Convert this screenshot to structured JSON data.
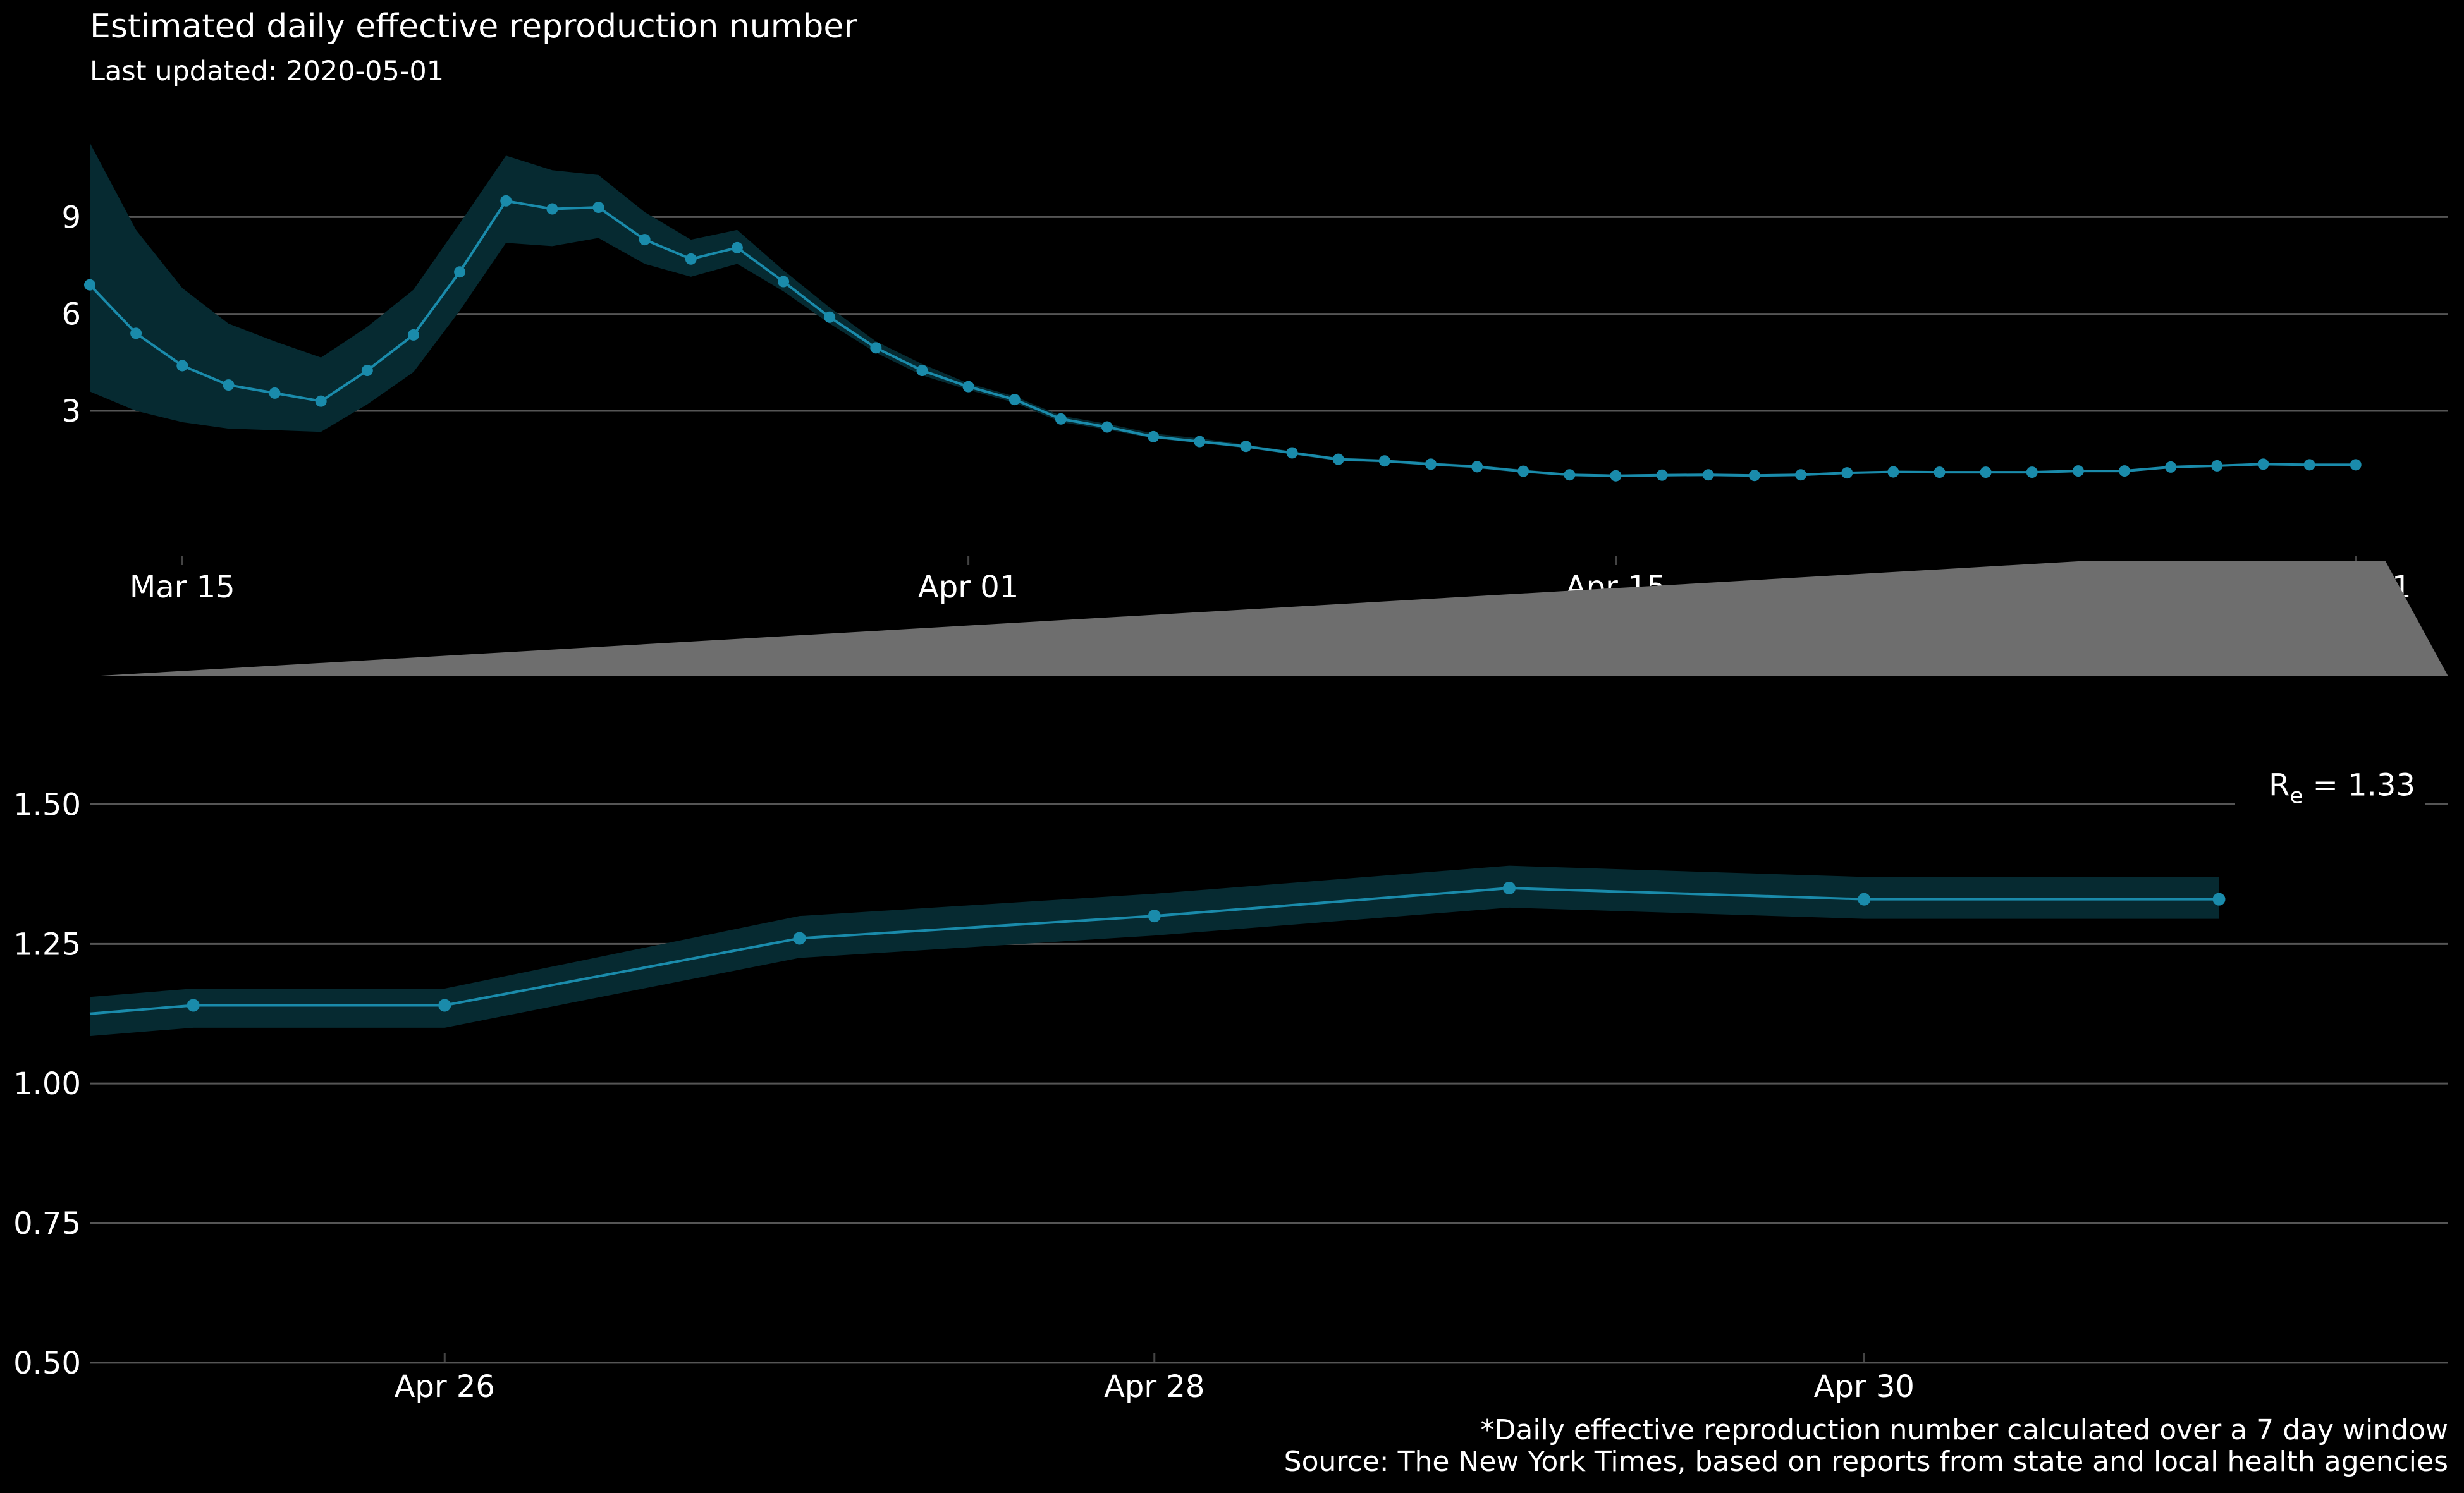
{
  "title": "Estimated daily effective reproduction number",
  "subtitle": "Last updated: 2020-05-01",
  "caption_line1": "*Daily effective reproduction number calculated over a 7 day window",
  "caption_line2": "Source: The New York Times, based on reports from state and local health agencies",
  "colors": {
    "background": "#000000",
    "line": "#1a8bab",
    "ribbon": "#062a31",
    "grid": "#555555",
    "zoom_connector": "#6e6e6e",
    "text": "#ffffff"
  },
  "chart_data": [
    {
      "type": "line",
      "title": "Estimated daily effective reproduction number",
      "subtitle": "Last updated: 2020-05-01",
      "xlabel": "",
      "ylabel": "",
      "x_range": [
        "2020-03-13",
        "2020-05-03"
      ],
      "ylim": [
        -1.5,
        12
      ],
      "y_ticks": [
        3,
        6,
        9
      ],
      "y_tick_labels": [
        "3",
        "6",
        "9"
      ],
      "x_ticks": [
        "2020-03-15",
        "2020-04-01",
        "2020-04-15",
        "2020-05-01"
      ],
      "x_tick_labels": [
        "Mar 15",
        "Apr 01",
        "Apr 15",
        "May 01"
      ],
      "grid": "horizontal",
      "series": [
        {
          "x": [
            "2020-03-13",
            "2020-03-14",
            "2020-03-15",
            "2020-03-16",
            "2020-03-17",
            "2020-03-18",
            "2020-03-19",
            "2020-03-20",
            "2020-03-21",
            "2020-03-22",
            "2020-03-23",
            "2020-03-24",
            "2020-03-25",
            "2020-03-26",
            "2020-03-27",
            "2020-03-28",
            "2020-03-29",
            "2020-03-30",
            "2020-03-31",
            "2020-04-01",
            "2020-04-02",
            "2020-04-03",
            "2020-04-04",
            "2020-04-05",
            "2020-04-06",
            "2020-04-07",
            "2020-04-08",
            "2020-04-09",
            "2020-04-10",
            "2020-04-11",
            "2020-04-12",
            "2020-04-13",
            "2020-04-14",
            "2020-04-15",
            "2020-04-16",
            "2020-04-17",
            "2020-04-18",
            "2020-04-19",
            "2020-04-20",
            "2020-04-21",
            "2020-04-22",
            "2020-04-23",
            "2020-04-24",
            "2020-04-25",
            "2020-04-26",
            "2020-04-27",
            "2020-04-28",
            "2020-04-29",
            "2020-04-30",
            "2020-05-01"
          ],
          "values": [
            6.9,
            5.4,
            4.4,
            3.8,
            3.55,
            3.3,
            4.25,
            5.35,
            7.3,
            9.5,
            9.25,
            9.3,
            8.3,
            7.7,
            8.05,
            7.0,
            5.9,
            4.95,
            4.25,
            3.75,
            3.35,
            2.75,
            2.5,
            2.2,
            2.05,
            1.9,
            1.7,
            1.5,
            1.45,
            1.35,
            1.27,
            1.13,
            1.02,
            0.99,
            1.01,
            1.02,
            1.0,
            1.02,
            1.08,
            1.11,
            1.1,
            1.1,
            1.1,
            1.14,
            1.14,
            1.26,
            1.3,
            1.35,
            1.33,
            1.33
          ],
          "lower": [
            3.6,
            3.0,
            2.65,
            2.45,
            2.4,
            2.35,
            3.2,
            4.2,
            6.1,
            8.2,
            8.1,
            8.35,
            7.55,
            7.15,
            7.55,
            6.7,
            5.7,
            4.8,
            4.1,
            3.65,
            3.25,
            2.65,
            2.42,
            2.15,
            2.0,
            1.85,
            1.65,
            1.45,
            1.4,
            1.3,
            1.22,
            1.08,
            0.98,
            0.95,
            0.97,
            0.98,
            0.96,
            0.98,
            1.04,
            1.07,
            1.06,
            1.06,
            1.06,
            1.1,
            1.1,
            1.23,
            1.27,
            1.32,
            1.3,
            1.3
          ],
          "upper": [
            11.3,
            8.6,
            6.8,
            5.7,
            5.15,
            4.65,
            5.6,
            6.75,
            8.8,
            10.9,
            10.45,
            10.3,
            9.15,
            8.3,
            8.6,
            7.35,
            6.2,
            5.15,
            4.45,
            3.85,
            3.45,
            2.85,
            2.6,
            2.3,
            2.15,
            1.95,
            1.75,
            1.55,
            1.5,
            1.4,
            1.32,
            1.18,
            1.06,
            1.03,
            1.05,
            1.06,
            1.04,
            1.06,
            1.12,
            1.15,
            1.14,
            1.14,
            1.14,
            1.18,
            1.18,
            1.3,
            1.34,
            1.39,
            1.37,
            1.37
          ]
        }
      ]
    },
    {
      "type": "line",
      "xlabel": "",
      "ylabel": "",
      "x_range": [
        "2020-04-25",
        "2020-05-01T15:30"
      ],
      "ylim": [
        0.45,
        1.65
      ],
      "y_ticks": [
        0.5,
        0.75,
        1.0,
        1.25,
        1.5
      ],
      "y_tick_labels": [
        "0.50",
        "0.75",
        "1.00",
        "1.25",
        "1.50"
      ],
      "x_ticks": [
        "2020-04-26",
        "2020-04-28",
        "2020-04-30"
      ],
      "x_tick_labels": [
        "Apr 26",
        "Apr 28",
        "Apr 30"
      ],
      "grid": "horizontal",
      "annotation": {
        "base": "R",
        "sub": "e",
        "text": " = 1.33"
      },
      "series": [
        {
          "x": [
            "2020-04-25",
            "2020-04-25T07:00",
            "2020-04-26",
            "2020-04-27",
            "2020-04-28",
            "2020-04-29",
            "2020-04-30",
            "2020-05-01"
          ],
          "values": [
            1.125,
            1.14,
            1.14,
            1.26,
            1.3,
            1.35,
            1.33,
            1.33
          ],
          "lower": [
            1.085,
            1.1,
            1.1,
            1.225,
            1.265,
            1.315,
            1.295,
            1.295
          ],
          "upper": [
            1.155,
            1.17,
            1.17,
            1.3,
            1.34,
            1.39,
            1.37,
            1.37
          ],
          "marked": [
            false,
            true,
            true,
            true,
            true,
            true,
            true,
            true
          ]
        }
      ]
    }
  ]
}
